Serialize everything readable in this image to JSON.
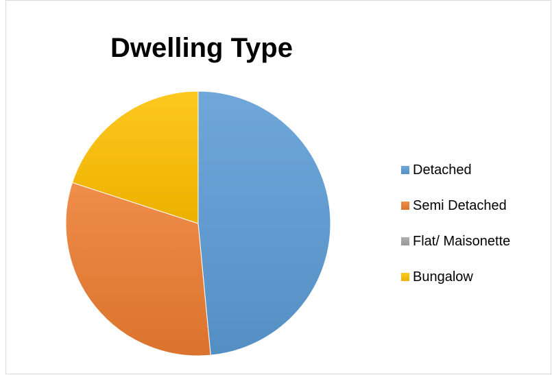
{
  "chart_data": {
    "type": "pie",
    "title": "Dwelling Type",
    "categories": [
      "Detached",
      "Semi Detached",
      "Flat/ Maisonette",
      "Bungalow"
    ],
    "values": [
      48.5,
      31.5,
      0,
      20
    ],
    "colors": [
      "#5b9bd5",
      "#ed7d31",
      "#a5a5a5",
      "#ffc000"
    ],
    "legend_position": "right",
    "start_angle": "12 o'clock",
    "direction": "clockwise"
  }
}
